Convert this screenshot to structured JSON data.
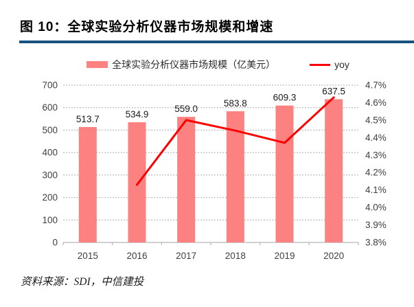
{
  "figure": {
    "title": "图 10：全球实验分析仪器市场规模和增速",
    "source": "资料来源：SDI，中信建投"
  },
  "legend": {
    "bar_label": "全球实验分析仪器市场规模（亿美元）",
    "line_label": "yoy"
  },
  "colors": {
    "bar": "#FB8280",
    "line": "#FF0000",
    "title_rule": "#17527E",
    "grid": "#ABABAB",
    "axis": "#C2C2C2",
    "tick_text": "#3F3F3F",
    "value_text": "#1A1A1A"
  },
  "chart_data": {
    "type": "bar",
    "categories": [
      "2015",
      "2016",
      "2017",
      "2018",
      "2019",
      "2020"
    ],
    "series": [
      {
        "name": "全球实验分析仪器市场规模（亿美元）",
        "type": "bar",
        "axis": "left",
        "values": [
          513.7,
          534.9,
          559.0,
          583.8,
          609.3,
          637.5
        ],
        "labels": [
          "513.7",
          "534.9",
          "559.0",
          "583.8",
          "609.3",
          "637.5"
        ]
      },
      {
        "name": "yoy",
        "type": "line",
        "axis": "right",
        "values": [
          null,
          4.13,
          4.5,
          4.44,
          4.37,
          4.63
        ]
      }
    ],
    "left_axis": {
      "min": 0,
      "max": 700,
      "step": 100,
      "ticks": [
        "0",
        "100",
        "200",
        "300",
        "400",
        "500",
        "600",
        "700"
      ]
    },
    "right_axis": {
      "min": 3.8,
      "max": 4.7,
      "step": 0.1,
      "ticks": [
        "3.8%",
        "3.9%",
        "4.0%",
        "4.1%",
        "4.2%",
        "4.3%",
        "4.4%",
        "4.5%",
        "4.6%",
        "4.7%"
      ]
    },
    "grid": "dashed-horizontal",
    "legend_position": "top"
  }
}
